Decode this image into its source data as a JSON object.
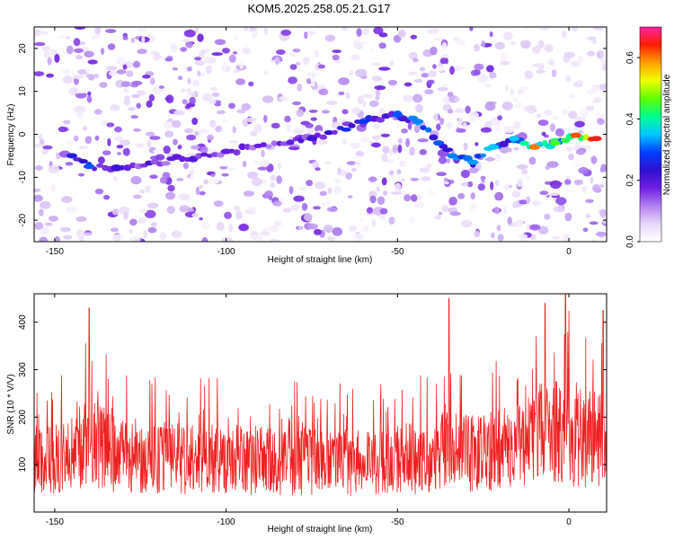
{
  "title": "KOM5.2025.258.05.21.G17",
  "chart_data": [
    {
      "type": "heatmap",
      "name": "spectrogram",
      "xlabel": "Height of straight line (km)",
      "ylabel": "Frequency (Hz)",
      "xlim": [
        -156,
        11
      ],
      "ylim": [
        -25,
        25
      ],
      "xticks": [
        -150,
        -100,
        -50,
        0
      ],
      "yticks": [
        -20,
        -10,
        0,
        10,
        20
      ],
      "colorbar": {
        "label": "Normalized spectral amplitude",
        "range": [
          0,
          0.7
        ],
        "ticks": [
          "0.0",
          "0.2",
          "0.4",
          "0.6"
        ],
        "tick_values": [
          0.0,
          0.2,
          0.4,
          0.6
        ],
        "colors": [
          "#ffffff",
          "#e8d8f8",
          "#b080f0",
          "#7020e0",
          "#3010d0",
          "#0040ff",
          "#00c8ff",
          "#00ff90",
          "#60ff00",
          "#f0ff00",
          "#ffa000",
          "#ff2000",
          "#ff20a0"
        ]
      },
      "ridge": {
        "description_points_km_hz": [
          [
            -145,
            -5
          ],
          [
            -140,
            -7.5
          ],
          [
            -132,
            -8
          ],
          [
            -100,
            -4
          ],
          [
            -75,
            -1
          ],
          [
            -60,
            3
          ],
          [
            -50,
            4.5
          ],
          [
            -44,
            3
          ],
          [
            -38,
            -2
          ],
          [
            -34,
            -5
          ],
          [
            -28,
            -6.5
          ],
          [
            -22,
            -3
          ],
          [
            -16,
            -1
          ],
          [
            -10,
            -3
          ],
          [
            -4,
            -2
          ],
          [
            2,
            -0.2
          ],
          [
            8,
            -1
          ]
        ],
        "peak_amplitudes": [
          0.25,
          0.3,
          0.22,
          0.18,
          0.22,
          0.28,
          0.3,
          0.32,
          0.3,
          0.32,
          0.33,
          0.35,
          0.35,
          0.6,
          0.45,
          0.62,
          0.65
        ]
      }
    },
    {
      "type": "line",
      "name": "snr",
      "xlabel": "Height of straight line (km)",
      "ylabel": "SNR (10 * V/V)",
      "xlim": [
        -156,
        11
      ],
      "ylim": [
        0,
        460
      ],
      "xticks": [
        -150,
        -100,
        -50,
        0
      ],
      "yticks": [
        100,
        200,
        300,
        400
      ],
      "color": "#ee2020",
      "envelope_km_snr": [
        [
          -156,
          130
        ],
        [
          -145,
          160
        ],
        [
          -140,
          190
        ],
        [
          -130,
          150
        ],
        [
          -110,
          145
        ],
        [
          -90,
          140
        ],
        [
          -60,
          135
        ],
        [
          -45,
          145
        ],
        [
          -35,
          165
        ],
        [
          -25,
          160
        ],
        [
          -15,
          175
        ],
        [
          -5,
          210
        ],
        [
          0,
          220
        ],
        [
          5,
          200
        ],
        [
          11,
          190
        ]
      ],
      "notable_peaks": [
        [
          -140,
          430
        ],
        [
          -35,
          450
        ],
        [
          -7,
          440
        ],
        [
          -1,
          460
        ],
        [
          10,
          425
        ]
      ]
    }
  ]
}
